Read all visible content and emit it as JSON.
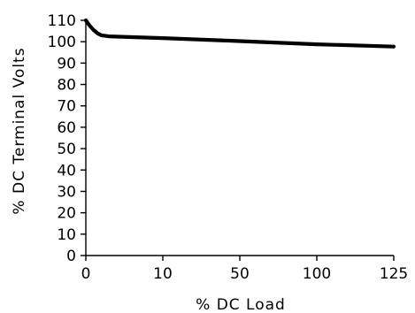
{
  "chart_data": {
    "type": "line",
    "title": "",
    "xlabel": "% DC Load",
    "ylabel": "% DC Terminal Volts",
    "x_ticks": [
      "0",
      "10",
      "50",
      "100",
      "125"
    ],
    "y_ticks": [
      "0",
      "10",
      "20",
      "30",
      "40",
      "50",
      "60",
      "70",
      "80",
      "90",
      "100",
      "110"
    ],
    "ylim": [
      0,
      110
    ],
    "grid": false,
    "series": [
      {
        "points": [
          {
            "x": "0",
            "y": 110
          },
          {
            "x": "0.5",
            "y": 107.5
          },
          {
            "x": "1",
            "y": 105.5
          },
          {
            "x": "1.5",
            "y": 104
          },
          {
            "x": "2",
            "y": 103
          },
          {
            "x": "3",
            "y": 102.5
          },
          {
            "x": "10",
            "y": 101.7
          },
          {
            "x": "50",
            "y": 100.3
          },
          {
            "x": "100",
            "y": 98.8
          },
          {
            "x": "125",
            "y": 97.7
          }
        ]
      }
    ]
  }
}
